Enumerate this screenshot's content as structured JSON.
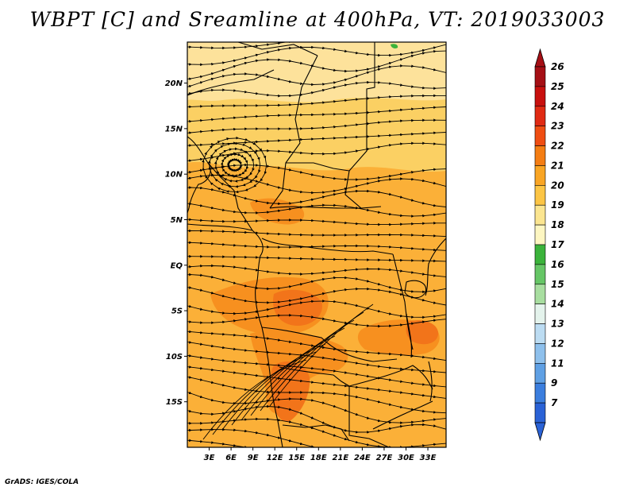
{
  "title": "WBPT [C] and Sreamline at 400hPa, VT: 2019033003",
  "credit": "GrADS: IGES/COLA",
  "map": {
    "lat_range": [
      -20,
      24.5
    ],
    "lon_range": [
      0,
      35.5
    ],
    "lat_ticks": [
      {
        "value": 20,
        "label": "20N"
      },
      {
        "value": 15,
        "label": "15N"
      },
      {
        "value": 10,
        "label": "10N"
      },
      {
        "value": 5,
        "label": "5N"
      },
      {
        "value": 0,
        "label": "EQ"
      },
      {
        "value": -5,
        "label": "5S"
      },
      {
        "value": -10,
        "label": "10S"
      },
      {
        "value": -15,
        "label": "15S"
      }
    ],
    "lon_ticks": [
      {
        "value": 3,
        "label": "3E"
      },
      {
        "value": 6,
        "label": "6E"
      },
      {
        "value": 9,
        "label": "9E"
      },
      {
        "value": 12,
        "label": "12E"
      },
      {
        "value": 15,
        "label": "15E"
      },
      {
        "value": 18,
        "label": "18E"
      },
      {
        "value": 21,
        "label": "21E"
      },
      {
        "value": 24,
        "label": "24E"
      },
      {
        "value": 27,
        "label": "27E"
      },
      {
        "value": 30,
        "label": "30E"
      },
      {
        "value": 33,
        "label": "33E"
      }
    ]
  },
  "colorbar": {
    "labels": [
      "26",
      "25",
      "24",
      "23",
      "22",
      "21",
      "20",
      "19",
      "18",
      "17",
      "16",
      "15",
      "14",
      "13",
      "12",
      "11",
      "9",
      "7"
    ],
    "colors": [
      "#a50f15",
      "#c8100e",
      "#e02a13",
      "#ef4d12",
      "#f47d13",
      "#f9a524",
      "#fcc545",
      "#fbe590",
      "#fdf6c1",
      "#3bb33b",
      "#66c666",
      "#a8dea0",
      "#e4f3ec",
      "#bcdcf2",
      "#8ec0ec",
      "#5fa0e4",
      "#3b7ede",
      "#2a62d6"
    ]
  },
  "field_colors": {
    "base": "#fbb038",
    "north": "#fbd063",
    "far_north": "#fde29b",
    "warm": "#f7901f",
    "hot": "#f2741a",
    "green": "#3bb33b"
  }
}
